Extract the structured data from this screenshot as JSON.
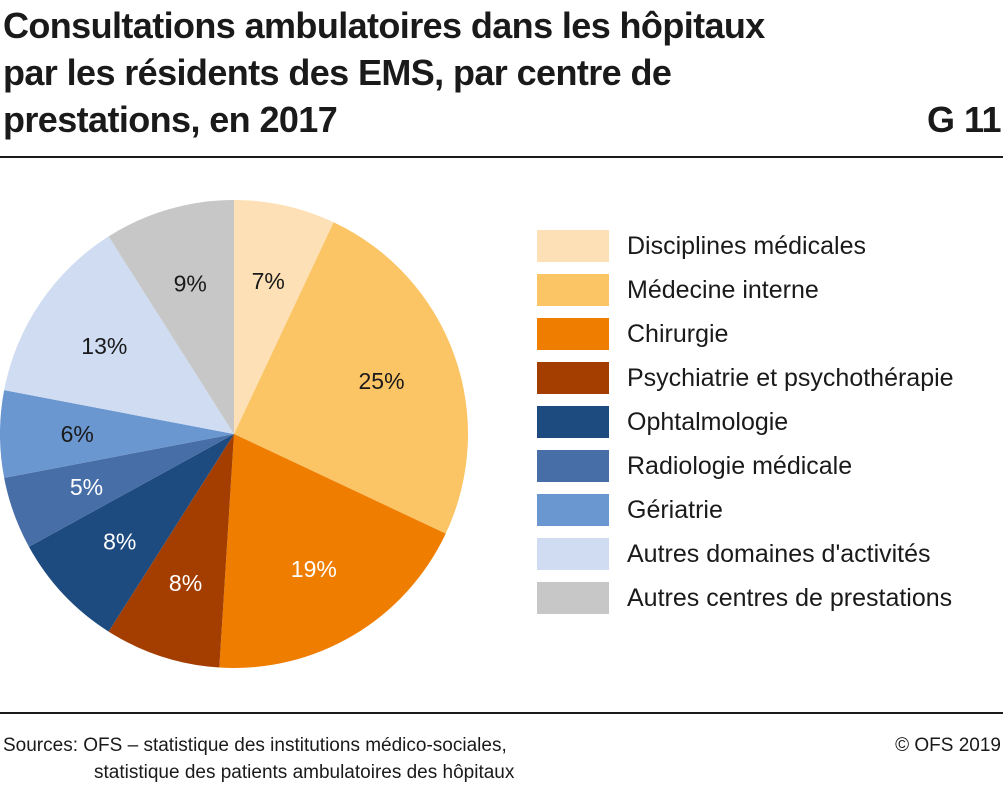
{
  "chart_data": {
    "type": "pie",
    "title_lines": [
      "Consultations ambulatoires dans les hôpitaux",
      "par les résidents des EMS, par centre de",
      "prestations, en 2017"
    ],
    "chart_number": "G 11",
    "categories": [
      "Disciplines médicales",
      "Médecine interne",
      "Chirurgie",
      "Psychiatrie et psychothérapie",
      "Ophtalmologie",
      "Radiologie médicale",
      "Gériatrie",
      "Autres domaines d'activités",
      "Autres centres de prestations"
    ],
    "values": [
      7,
      25,
      19,
      8,
      8,
      5,
      6,
      13,
      9
    ],
    "value_labels": [
      "7%",
      "25%",
      "19%",
      "8%",
      "8%",
      "5%",
      "6%",
      "13%",
      "9%"
    ],
    "colors": [
      "#fde0b5",
      "#fbc566",
      "#ef7d00",
      "#a33e00",
      "#1d4b80",
      "#476ea6",
      "#6a97d0",
      "#cfdcf1",
      "#c6c7c6"
    ],
    "label_colors": [
      "#1a1a1a",
      "#1a1a1a",
      "#ffffff",
      "#ffffff",
      "#ffffff",
      "#ffffff",
      "#1a1a1a",
      "#1a1a1a",
      "#1a1a1a"
    ],
    "legend_position": "right",
    "start": "top",
    "direction": "clockwise"
  },
  "source": {
    "line1": "Sources: OFS – statistique des institutions médico-sociales,",
    "line2": "statistique des patients ambulatoires des hôpitaux"
  },
  "copyright": "© OFS 2019"
}
